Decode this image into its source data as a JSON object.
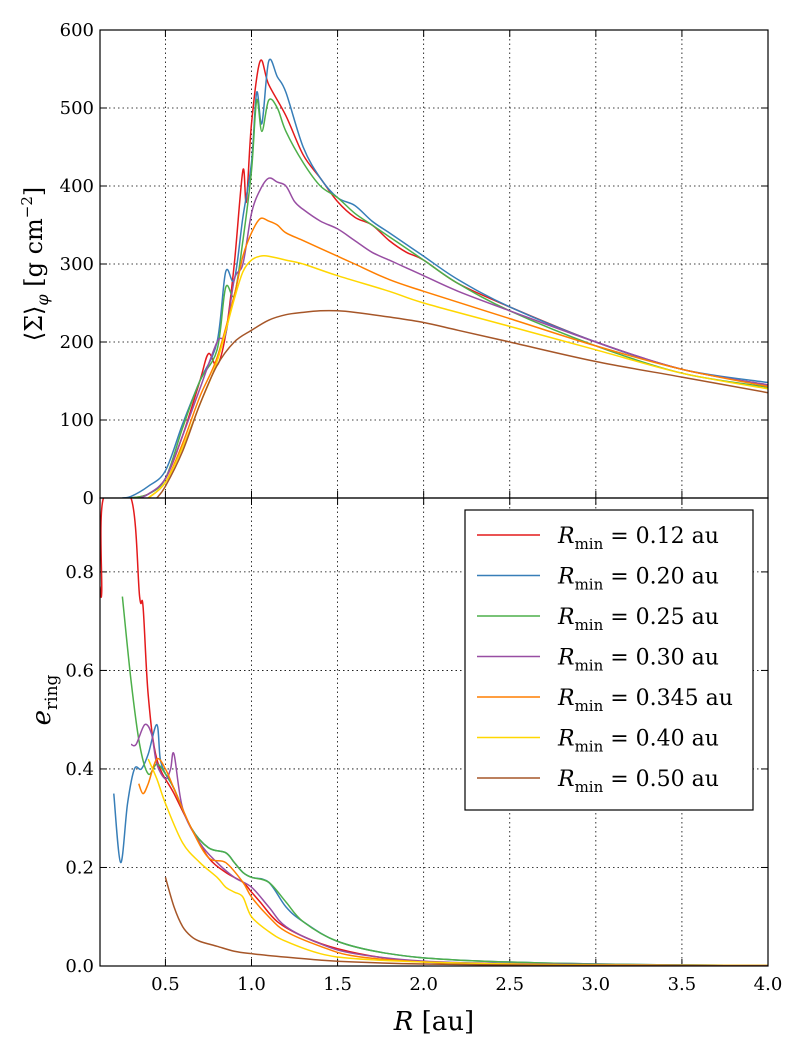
{
  "figure": {
    "xlabel_var": "R",
    "xlabel_unit": "[au]",
    "top_ylabel": "⟨Σ⟩",
    "top_ylabel_sub": "φ",
    "top_ylabel_unit": "[g cm",
    "top_ylabel_exp": "−2",
    "bottom_ylabel": "e",
    "bottom_ylabel_sub": "ring"
  },
  "chart_data": [
    {
      "type": "line",
      "panel": "top",
      "xlabel": "",
      "ylabel": "⟨Σ⟩_φ [g cm^-2]",
      "xlim": [
        0.12,
        4.0
      ],
      "ylim": [
        0,
        600
      ],
      "grid": true,
      "xticks": [
        0.5,
        1.0,
        1.5,
        2.0,
        2.5,
        3.0,
        3.5,
        4.0
      ],
      "yticks": [
        0,
        100,
        200,
        300,
        400,
        500,
        600
      ],
      "series": [
        {
          "name": "R_min = 0.12 au",
          "color": "#e41a1c",
          "x": [
            0.3,
            0.4,
            0.5,
            0.6,
            0.7,
            0.75,
            0.8,
            0.85,
            0.9,
            0.95,
            0.97,
            1.0,
            1.05,
            1.1,
            1.2,
            1.3,
            1.4,
            1.5,
            1.6,
            1.7,
            1.8,
            1.9,
            2.0,
            2.2,
            2.5,
            3.0,
            3.5,
            4.0
          ],
          "y": [
            0,
            5,
            25,
            80,
            150,
            185,
            170,
            210,
            300,
            420,
            380,
            480,
            560,
            530,
            490,
            440,
            410,
            380,
            360,
            350,
            330,
            315,
            305,
            275,
            245,
            200,
            165,
            145
          ]
        },
        {
          "name": "R_min = 0.20 au",
          "color": "#377eb8",
          "x": [
            0.25,
            0.3,
            0.4,
            0.5,
            0.6,
            0.7,
            0.8,
            0.85,
            0.9,
            0.95,
            1.0,
            1.03,
            1.06,
            1.1,
            1.15,
            1.2,
            1.3,
            1.4,
            1.5,
            1.6,
            1.7,
            1.8,
            1.9,
            2.0,
            2.2,
            2.5,
            3.0,
            3.5,
            4.0
          ],
          "y": [
            0,
            2,
            15,
            35,
            95,
            150,
            200,
            290,
            280,
            360,
            430,
            520,
            480,
            560,
            540,
            520,
            450,
            410,
            385,
            375,
            355,
            340,
            325,
            310,
            280,
            245,
            200,
            165,
            148
          ]
        },
        {
          "name": "R_min = 0.25 au",
          "color": "#4daf4a",
          "x": [
            0.3,
            0.4,
            0.5,
            0.6,
            0.7,
            0.8,
            0.85,
            0.9,
            0.95,
            1.0,
            1.03,
            1.06,
            1.1,
            1.15,
            1.2,
            1.3,
            1.4,
            1.5,
            1.6,
            1.7,
            1.8,
            1.9,
            2.0,
            2.2,
            2.5,
            3.0,
            3.5,
            4.0
          ],
          "y": [
            0,
            5,
            25,
            90,
            150,
            190,
            270,
            260,
            330,
            420,
            510,
            470,
            510,
            500,
            470,
            430,
            400,
            385,
            365,
            350,
            335,
            320,
            305,
            275,
            240,
            195,
            160,
            142
          ]
        },
        {
          "name": "R_min = 0.30 au",
          "color": "#984ea3",
          "x": [
            0.35,
            0.4,
            0.5,
            0.6,
            0.7,
            0.8,
            0.85,
            0.9,
            0.95,
            1.0,
            1.05,
            1.1,
            1.15,
            1.2,
            1.25,
            1.3,
            1.4,
            1.5,
            1.6,
            1.7,
            1.8,
            1.9,
            2.0,
            2.2,
            2.5,
            3.0,
            3.5,
            4.0
          ],
          "y": [
            0,
            5,
            25,
            80,
            140,
            200,
            210,
            280,
            300,
            365,
            395,
            410,
            405,
            400,
            380,
            370,
            355,
            345,
            330,
            315,
            305,
            295,
            285,
            265,
            240,
            200,
            165,
            145
          ]
        },
        {
          "name": "R_min = 0.345 au",
          "color": "#ff7f00",
          "x": [
            0.4,
            0.5,
            0.6,
            0.7,
            0.8,
            0.9,
            0.95,
            1.0,
            1.05,
            1.1,
            1.15,
            1.2,
            1.3,
            1.4,
            1.5,
            1.6,
            1.8,
            2.0,
            2.5,
            3.0,
            3.5,
            4.0
          ],
          "y": [
            0,
            20,
            70,
            130,
            180,
            260,
            310,
            340,
            358,
            355,
            350,
            340,
            330,
            320,
            310,
            300,
            280,
            265,
            230,
            195,
            165,
            143
          ]
        },
        {
          "name": "R_min = 0.40 au",
          "color": "#ffd700",
          "x": [
            0.4,
            0.5,
            0.6,
            0.7,
            0.8,
            0.9,
            0.95,
            1.0,
            1.05,
            1.1,
            1.2,
            1.3,
            1.5,
            1.8,
            2.0,
            2.5,
            3.0,
            3.5,
            4.0
          ],
          "y": [
            0,
            20,
            65,
            120,
            175,
            255,
            290,
            305,
            310,
            310,
            305,
            300,
            285,
            265,
            250,
            220,
            190,
            160,
            140
          ]
        },
        {
          "name": "R_min = 0.50 au",
          "color": "#a65628",
          "x": [
            0.45,
            0.5,
            0.6,
            0.7,
            0.8,
            0.9,
            1.0,
            1.1,
            1.2,
            1.3,
            1.4,
            1.5,
            1.6,
            1.8,
            2.0,
            2.2,
            2.5,
            3.0,
            3.5,
            4.0
          ],
          "y": [
            0,
            15,
            60,
            120,
            170,
            200,
            215,
            228,
            235,
            238,
            240,
            240,
            238,
            232,
            225,
            215,
            200,
            175,
            155,
            135
          ]
        }
      ]
    },
    {
      "type": "line",
      "panel": "bottom",
      "xlabel": "R [au]",
      "ylabel": "e_ring",
      "xlim": [
        0.12,
        4.0
      ],
      "ylim": [
        0.0,
        0.95
      ],
      "grid": true,
      "xticks": [
        0.5,
        1.0,
        1.5,
        2.0,
        2.5,
        3.0,
        3.5,
        4.0
      ],
      "yticks": [
        0.0,
        0.2,
        0.4,
        0.6,
        0.8
      ],
      "legend_position": "top-right",
      "series": [
        {
          "name": "R_min = 0.12 au",
          "label_prefix": "R",
          "label_sub": "min",
          "label_value": " = 0.12 au",
          "color": "#e41a1c",
          "x": [
            0.12,
            0.13,
            0.14,
            0.3,
            0.35,
            0.37,
            0.4,
            0.45,
            0.55,
            0.65,
            0.75,
            0.85,
            0.95,
            1.0,
            1.05,
            1.15,
            1.3,
            1.5,
            1.8,
            2.2,
            3.0,
            4.0
          ],
          "y": [
            0.77,
            0.76,
            0.95,
            0.95,
            0.75,
            0.73,
            0.55,
            0.42,
            0.35,
            0.28,
            0.22,
            0.19,
            0.17,
            0.15,
            0.13,
            0.09,
            0.06,
            0.035,
            0.015,
            0.006,
            0.002,
            0.001
          ]
        },
        {
          "name": "R_min = 0.20 au",
          "label_prefix": "R",
          "label_sub": "min",
          "label_value": " = 0.20 au",
          "color": "#377eb8",
          "x": [
            0.2,
            0.24,
            0.28,
            0.32,
            0.36,
            0.4,
            0.45,
            0.47,
            0.5,
            0.55,
            0.65,
            0.75,
            0.85,
            0.9,
            0.95,
            1.0,
            1.1,
            1.2,
            1.3,
            1.5,
            1.8,
            2.2,
            3.0,
            4.0
          ],
          "y": [
            0.35,
            0.21,
            0.33,
            0.4,
            0.4,
            0.43,
            0.49,
            0.42,
            0.39,
            0.36,
            0.28,
            0.24,
            0.23,
            0.21,
            0.19,
            0.18,
            0.17,
            0.12,
            0.09,
            0.05,
            0.025,
            0.012,
            0.004,
            0.001
          ]
        },
        {
          "name": "R_min = 0.25 au",
          "label_prefix": "R",
          "label_sub": "min",
          "label_value": " = 0.25 au",
          "color": "#4daf4a",
          "x": [
            0.25,
            0.3,
            0.35,
            0.4,
            0.45,
            0.5,
            0.55,
            0.65,
            0.75,
            0.85,
            0.9,
            0.95,
            1.0,
            1.1,
            1.2,
            1.3,
            1.5,
            1.8,
            2.2,
            3.0,
            4.0
          ],
          "y": [
            0.75,
            0.58,
            0.45,
            0.39,
            0.41,
            0.39,
            0.36,
            0.28,
            0.24,
            0.23,
            0.21,
            0.19,
            0.18,
            0.17,
            0.13,
            0.09,
            0.05,
            0.025,
            0.012,
            0.004,
            0.001
          ]
        },
        {
          "name": "R_min = 0.30 au",
          "label_prefix": "R",
          "label_sub": "min",
          "label_value": " = 0.30 au",
          "color": "#984ea3",
          "x": [
            0.3,
            0.33,
            0.38,
            0.42,
            0.45,
            0.5,
            0.53,
            0.55,
            0.6,
            0.7,
            0.8,
            0.9,
            1.0,
            1.1,
            1.2,
            1.4,
            1.6,
            2.0,
            2.5,
            3.0,
            4.0
          ],
          "y": [
            0.45,
            0.45,
            0.49,
            0.47,
            0.41,
            0.38,
            0.4,
            0.43,
            0.32,
            0.25,
            0.21,
            0.18,
            0.16,
            0.12,
            0.08,
            0.045,
            0.025,
            0.01,
            0.005,
            0.003,
            0.001
          ]
        },
        {
          "name": "R_min = 0.345 au",
          "label_prefix": "R",
          "label_sub": "min",
          "label_value": " = 0.345 au",
          "color": "#ff7f00",
          "x": [
            0.345,
            0.37,
            0.4,
            0.45,
            0.5,
            0.55,
            0.65,
            0.75,
            0.85,
            0.95,
            1.0,
            1.1,
            1.2,
            1.4,
            1.6,
            2.0,
            2.5,
            3.0,
            4.0
          ],
          "y": [
            0.37,
            0.35,
            0.37,
            0.42,
            0.4,
            0.36,
            0.28,
            0.22,
            0.21,
            0.17,
            0.14,
            0.1,
            0.07,
            0.04,
            0.02,
            0.008,
            0.004,
            0.002,
            0.001
          ]
        },
        {
          "name": "R_min = 0.40 au",
          "label_prefix": "R",
          "label_sub": "min",
          "label_value": " = 0.40 au",
          "color": "#ffd700",
          "x": [
            0.4,
            0.45,
            0.5,
            0.6,
            0.7,
            0.8,
            0.85,
            0.9,
            0.95,
            1.0,
            1.1,
            1.2,
            1.4,
            1.6,
            2.0,
            2.5,
            3.0,
            4.0
          ],
          "y": [
            0.42,
            0.38,
            0.33,
            0.25,
            0.21,
            0.18,
            0.16,
            0.15,
            0.14,
            0.1,
            0.07,
            0.05,
            0.025,
            0.015,
            0.008,
            0.004,
            0.002,
            0.001
          ]
        },
        {
          "name": "R_min = 0.50 au",
          "label_prefix": "R",
          "label_sub": "min",
          "label_value": " = 0.50 au",
          "color": "#a65628",
          "x": [
            0.5,
            0.55,
            0.6,
            0.65,
            0.7,
            0.8,
            0.9,
            1.0,
            1.2,
            1.4,
            1.6,
            2.0,
            2.5,
            3.0,
            4.0
          ],
          "y": [
            0.18,
            0.12,
            0.08,
            0.06,
            0.05,
            0.04,
            0.03,
            0.025,
            0.018,
            0.012,
            0.008,
            0.004,
            0.002,
            0.001,
            0.0005
          ]
        }
      ]
    }
  ]
}
